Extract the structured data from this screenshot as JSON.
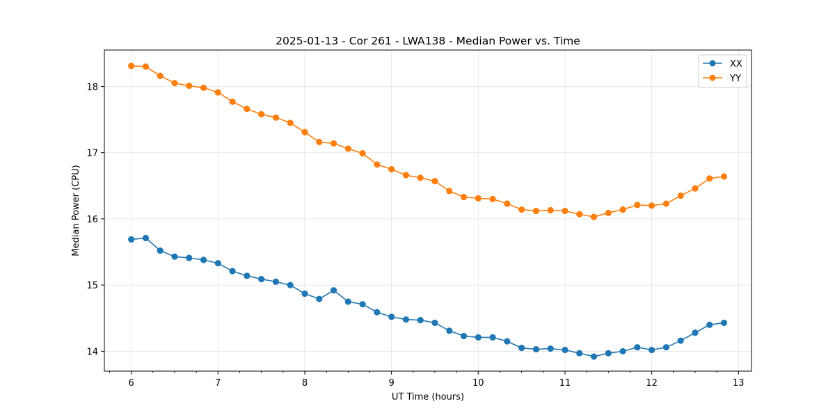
{
  "chart_data": {
    "type": "line",
    "title": "2025-01-13 - Cor 261 - LWA138 - Median Power vs. Time",
    "xlabel": "UT Time (hours)",
    "ylabel": "Median Power (CPU)",
    "xlim": [
      5.69,
      13.15
    ],
    "ylim": [
      13.7,
      18.55
    ],
    "x_ticks": [
      6,
      7,
      8,
      9,
      10,
      11,
      12,
      13
    ],
    "y_ticks": [
      14,
      15,
      16,
      17,
      18
    ],
    "grid": true,
    "legend_position": "top-right",
    "x": [
      6.0,
      6.1667,
      6.3333,
      6.5,
      6.6667,
      6.8333,
      7.0,
      7.1667,
      7.3333,
      7.5,
      7.6667,
      7.8333,
      8.0,
      8.1667,
      8.3333,
      8.5,
      8.6667,
      8.8333,
      9.0,
      9.1667,
      9.3333,
      9.5,
      9.6667,
      9.8333,
      10.0,
      10.1667,
      10.3333,
      10.5,
      10.6667,
      10.8333,
      11.0,
      11.1667,
      11.3333,
      11.5,
      11.6667,
      11.8333,
      12.0,
      12.1667,
      12.3333,
      12.5,
      12.6667,
      12.8333
    ],
    "series": [
      {
        "name": "XX",
        "color": "#1f77b4",
        "values": [
          15.69,
          15.71,
          15.52,
          15.43,
          15.41,
          15.38,
          15.33,
          15.21,
          15.14,
          15.09,
          15.05,
          15.0,
          14.87,
          14.79,
          14.92,
          14.75,
          14.71,
          14.59,
          14.52,
          14.48,
          14.47,
          14.43,
          14.31,
          14.23,
          14.21,
          14.21,
          14.15,
          14.05,
          14.03,
          14.04,
          14.02,
          13.97,
          13.92,
          13.97,
          14.0,
          14.06,
          14.02,
          14.06,
          14.16,
          14.28,
          14.4,
          14.43
        ]
      },
      {
        "name": "YY",
        "color": "#ff7f0e",
        "values": [
          18.31,
          18.3,
          18.16,
          18.05,
          18.01,
          17.98,
          17.91,
          17.77,
          17.66,
          17.58,
          17.53,
          17.45,
          17.31,
          17.16,
          17.14,
          17.06,
          16.99,
          16.82,
          16.75,
          16.66,
          16.62,
          16.57,
          16.42,
          16.33,
          16.31,
          16.3,
          16.23,
          16.14,
          16.12,
          16.13,
          16.12,
          16.07,
          16.03,
          16.09,
          16.14,
          16.21,
          16.2,
          16.23,
          16.35,
          16.46,
          16.61,
          16.64
        ]
      }
    ]
  }
}
